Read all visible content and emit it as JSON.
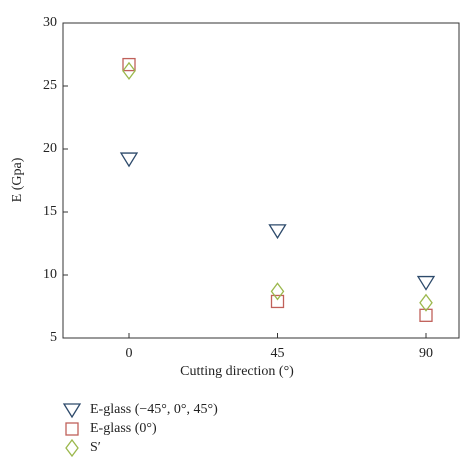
{
  "chart_data": {
    "type": "scatter",
    "x_label": "Cutting direction (°)",
    "y_label": "E (Gpa)",
    "x": [
      0,
      45,
      90
    ],
    "xlim": [
      -20,
      100
    ],
    "xticks": [
      0,
      45,
      90
    ],
    "ylim": [
      5,
      30
    ],
    "yticks": [
      5,
      10,
      15,
      20,
      25,
      30
    ],
    "series": [
      {
        "name": "E-glass (−45°, 0°, 45°)",
        "color": "#2d4a6b",
        "marker": "triangle-down",
        "values": [
          19.2,
          13.5,
          9.4
        ]
      },
      {
        "name": "E-glass (0°)",
        "color": "#c0605a",
        "marker": "square",
        "values": [
          26.7,
          7.9,
          6.8
        ]
      },
      {
        "name": "S′",
        "color": "#9bb84c",
        "marker": "diamond",
        "values": [
          26.2,
          8.7,
          7.8
        ]
      }
    ]
  }
}
